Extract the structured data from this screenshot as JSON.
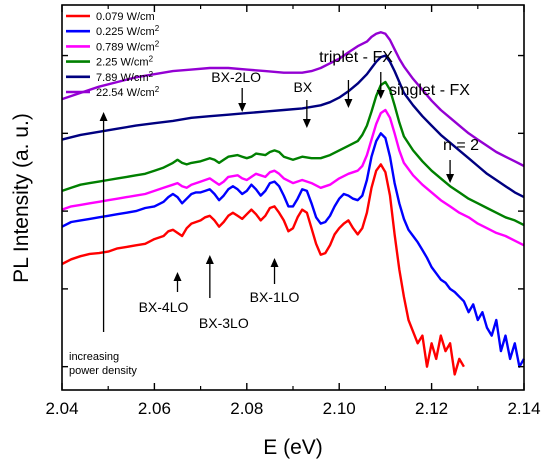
{
  "chart_data": {
    "type": "line",
    "xlabel": "E (eV)",
    "ylabel": "PL Intensity (a. u.)",
    "xlim": [
      2.04,
      2.14
    ],
    "x_ticks": [
      "2.04",
      "2.06",
      "2.08",
      "2.10",
      "2.12",
      "2.14"
    ],
    "y_scale": "log",
    "y_tick_labels_shown": false,
    "grid": false,
    "legend_position": "top-left",
    "series": [
      {
        "name": "0.079 W/cm",
        "name_sup": "",
        "color": "#ff0000",
        "x": [
          2.04,
          2.042,
          2.044,
          2.046,
          2.048,
          2.05,
          2.052,
          2.054,
          2.056,
          2.058,
          2.06,
          2.062,
          2.063,
          2.064,
          2.065,
          2.066,
          2.067,
          2.068,
          2.069,
          2.07,
          2.071,
          2.072,
          2.073,
          2.074,
          2.075,
          2.076,
          2.077,
          2.078,
          2.079,
          2.08,
          2.081,
          2.082,
          2.083,
          2.084,
          2.085,
          2.086,
          2.087,
          2.088,
          2.089,
          2.09,
          2.091,
          2.092,
          2.093,
          2.094,
          2.095,
          2.096,
          2.097,
          2.098,
          2.099,
          2.1,
          2.101,
          2.102,
          2.103,
          2.104,
          2.105,
          2.106,
          2.107,
          2.108,
          2.109,
          2.11,
          2.111,
          2.112,
          2.113,
          2.114,
          2.115,
          2.116,
          2.117,
          2.118,
          2.119,
          2.12,
          2.121,
          2.122,
          2.123,
          2.124,
          2.125,
          2.126,
          2.127
        ],
        "y": [
          -0.68,
          -0.62,
          -0.58,
          -0.55,
          -0.54,
          -0.52,
          -0.48,
          -0.46,
          -0.44,
          -0.42,
          -0.36,
          -0.32,
          -0.26,
          -0.24,
          -0.28,
          -0.32,
          -0.22,
          -0.16,
          -0.14,
          -0.12,
          -0.08,
          -0.06,
          -0.12,
          -0.2,
          -0.14,
          -0.06,
          -0.02,
          -0.06,
          -0.1,
          -0.04,
          0.02,
          -0.04,
          -0.12,
          -0.06,
          0.04,
          0.06,
          -0.02,
          -0.12,
          -0.26,
          -0.22,
          -0.08,
          0.02,
          -0.02,
          -0.22,
          -0.42,
          -0.56,
          -0.54,
          -0.44,
          -0.3,
          -0.22,
          -0.16,
          -0.12,
          -0.22,
          -0.3,
          -0.22,
          -0.02,
          0.3,
          0.52,
          0.6,
          0.5,
          0.2,
          -0.3,
          -0.75,
          -1.1,
          -1.4,
          -1.55,
          -1.7,
          -1.6,
          -2.0,
          -1.7,
          -1.9,
          -1.6,
          -1.8,
          -1.7,
          -2.1,
          -1.9,
          -2.0
        ]
      },
      {
        "name": "0.225 W/cm",
        "name_sup": "2",
        "color": "#0000ff",
        "x": [
          2.04,
          2.042,
          2.044,
          2.046,
          2.048,
          2.05,
          2.052,
          2.054,
          2.056,
          2.058,
          2.06,
          2.062,
          2.063,
          2.064,
          2.065,
          2.066,
          2.067,
          2.068,
          2.069,
          2.07,
          2.071,
          2.072,
          2.073,
          2.074,
          2.075,
          2.076,
          2.077,
          2.078,
          2.079,
          2.08,
          2.081,
          2.082,
          2.083,
          2.084,
          2.085,
          2.086,
          2.087,
          2.088,
          2.089,
          2.09,
          2.091,
          2.092,
          2.093,
          2.094,
          2.095,
          2.096,
          2.097,
          2.098,
          2.099,
          2.1,
          2.101,
          2.102,
          2.103,
          2.104,
          2.105,
          2.106,
          2.107,
          2.108,
          2.109,
          2.11,
          2.111,
          2.112,
          2.113,
          2.114,
          2.115,
          2.116,
          2.117,
          2.118,
          2.119,
          2.12,
          2.121,
          2.122,
          2.123,
          2.124,
          2.125,
          2.126,
          2.127,
          2.128,
          2.129,
          2.13,
          2.131,
          2.132,
          2.133,
          2.134,
          2.135,
          2.136,
          2.137,
          2.138,
          2.139,
          2.14
        ],
        "y": [
          -0.2,
          -0.14,
          -0.12,
          -0.1,
          -0.08,
          -0.06,
          -0.04,
          -0.02,
          0.0,
          0.04,
          0.06,
          0.12,
          0.18,
          0.22,
          0.18,
          0.1,
          0.16,
          0.22,
          0.24,
          0.24,
          0.26,
          0.28,
          0.22,
          0.14,
          0.2,
          0.28,
          0.32,
          0.28,
          0.22,
          0.26,
          0.34,
          0.28,
          0.2,
          0.26,
          0.36,
          0.38,
          0.32,
          0.2,
          0.06,
          0.06,
          0.16,
          0.28,
          0.26,
          0.1,
          -0.08,
          -0.16,
          -0.14,
          -0.06,
          0.06,
          0.16,
          0.22,
          0.2,
          0.16,
          0.14,
          0.2,
          0.4,
          0.7,
          0.9,
          1.0,
          0.94,
          0.7,
          0.36,
          0.1,
          -0.1,
          -0.24,
          -0.32,
          -0.4,
          -0.5,
          -0.6,
          -0.72,
          -0.8,
          -0.88,
          -0.92,
          -1.0,
          -1.04,
          -1.1,
          -1.16,
          -1.3,
          -1.2,
          -1.4,
          -1.3,
          -1.5,
          -1.6,
          -1.4,
          -1.8,
          -1.6,
          -1.9,
          -1.7,
          -2.0,
          -1.9
        ]
      },
      {
        "name": "0.789 W/cm",
        "name_sup": "2",
        "color": "#ff00ff",
        "x": [
          2.04,
          2.042,
          2.044,
          2.046,
          2.048,
          2.05,
          2.052,
          2.054,
          2.056,
          2.058,
          2.06,
          2.062,
          2.064,
          2.065,
          2.066,
          2.067,
          2.068,
          2.07,
          2.072,
          2.073,
          2.074,
          2.075,
          2.076,
          2.078,
          2.079,
          2.08,
          2.081,
          2.082,
          2.084,
          2.085,
          2.086,
          2.087,
          2.088,
          2.09,
          2.092,
          2.094,
          2.096,
          2.098,
          2.1,
          2.102,
          2.104,
          2.105,
          2.106,
          2.107,
          2.108,
          2.109,
          2.11,
          2.111,
          2.112,
          2.113,
          2.114,
          2.116,
          2.118,
          2.12,
          2.122,
          2.124,
          2.126,
          2.128,
          2.13,
          2.132,
          2.134,
          2.136,
          2.138,
          2.14
        ],
        "y": [
          0.02,
          0.06,
          0.08,
          0.1,
          0.12,
          0.14,
          0.16,
          0.18,
          0.2,
          0.22,
          0.26,
          0.3,
          0.34,
          0.36,
          0.32,
          0.3,
          0.34,
          0.38,
          0.42,
          0.38,
          0.34,
          0.38,
          0.44,
          0.46,
          0.42,
          0.4,
          0.44,
          0.48,
          0.44,
          0.5,
          0.52,
          0.48,
          0.42,
          0.36,
          0.4,
          0.36,
          0.3,
          0.34,
          0.42,
          0.48,
          0.52,
          0.58,
          0.72,
          0.92,
          1.12,
          1.26,
          1.3,
          1.2,
          1.0,
          0.78,
          0.62,
          0.46,
          0.34,
          0.24,
          0.14,
          0.06,
          -0.02,
          -0.08,
          -0.16,
          -0.22,
          -0.28,
          -0.32,
          -0.38,
          -0.44
        ]
      },
      {
        "name": "2.25 W/cm",
        "name_sup": "2",
        "color": "#008000",
        "x": [
          2.04,
          2.042,
          2.044,
          2.046,
          2.048,
          2.05,
          2.052,
          2.054,
          2.056,
          2.058,
          2.06,
          2.062,
          2.064,
          2.065,
          2.066,
          2.067,
          2.068,
          2.07,
          2.072,
          2.073,
          2.074,
          2.075,
          2.076,
          2.078,
          2.079,
          2.08,
          2.081,
          2.082,
          2.084,
          2.085,
          2.086,
          2.087,
          2.088,
          2.09,
          2.092,
          2.094,
          2.096,
          2.098,
          2.1,
          2.102,
          2.104,
          2.105,
          2.106,
          2.107,
          2.108,
          2.109,
          2.11,
          2.111,
          2.112,
          2.113,
          2.114,
          2.116,
          2.118,
          2.12,
          2.122,
          2.124,
          2.126,
          2.128,
          2.13,
          2.132,
          2.134,
          2.136,
          2.138,
          2.14
        ],
        "y": [
          0.26,
          0.3,
          0.34,
          0.36,
          0.38,
          0.4,
          0.42,
          0.44,
          0.46,
          0.48,
          0.52,
          0.56,
          0.62,
          0.66,
          0.62,
          0.6,
          0.62,
          0.64,
          0.68,
          0.66,
          0.62,
          0.66,
          0.7,
          0.72,
          0.7,
          0.68,
          0.7,
          0.74,
          0.72,
          0.76,
          0.78,
          0.76,
          0.7,
          0.66,
          0.7,
          0.68,
          0.68,
          0.72,
          0.78,
          0.84,
          0.9,
          0.98,
          1.1,
          1.28,
          1.48,
          1.62,
          1.66,
          1.56,
          1.36,
          1.14,
          0.96,
          0.78,
          0.64,
          0.52,
          0.42,
          0.32,
          0.24,
          0.16,
          0.1,
          0.04,
          -0.02,
          -0.08,
          -0.12,
          -0.18
        ]
      },
      {
        "name": "7.89 W/cm",
        "name_sup": "2",
        "color": "#000080",
        "x": [
          2.04,
          2.044,
          2.048,
          2.052,
          2.056,
          2.06,
          2.064,
          2.068,
          2.072,
          2.076,
          2.08,
          2.084,
          2.088,
          2.092,
          2.096,
          2.098,
          2.1,
          2.102,
          2.104,
          2.106,
          2.107,
          2.108,
          2.109,
          2.11,
          2.111,
          2.112,
          2.113,
          2.114,
          2.116,
          2.118,
          2.12,
          2.122,
          2.124,
          2.126,
          2.128,
          2.13,
          2.132,
          2.134,
          2.136,
          2.138,
          2.14
        ],
        "y": [
          0.92,
          0.98,
          1.02,
          1.06,
          1.1,
          1.13,
          1.16,
          1.2,
          1.22,
          1.24,
          1.26,
          1.28,
          1.3,
          1.32,
          1.36,
          1.4,
          1.46,
          1.54,
          1.64,
          1.76,
          1.84,
          1.92,
          1.98,
          2.0,
          1.92,
          1.8,
          1.66,
          1.52,
          1.36,
          1.22,
          1.1,
          0.98,
          0.88,
          0.78,
          0.68,
          0.58,
          0.48,
          0.4,
          0.32,
          0.24,
          0.18
        ]
      },
      {
        "name": "22.54 W/cm",
        "name_sup": "2",
        "color": "#9400d3",
        "x": [
          2.04,
          2.044,
          2.048,
          2.052,
          2.056,
          2.06,
          2.064,
          2.068,
          2.072,
          2.076,
          2.08,
          2.084,
          2.088,
          2.092,
          2.094,
          2.096,
          2.098,
          2.1,
          2.102,
          2.104,
          2.106,
          2.107,
          2.108,
          2.109,
          2.11,
          2.111,
          2.112,
          2.113,
          2.114,
          2.116,
          2.118,
          2.12,
          2.122,
          2.124,
          2.126,
          2.128,
          2.13,
          2.132,
          2.134,
          2.136,
          2.138,
          2.14
        ],
        "y": [
          1.44,
          1.52,
          1.6,
          1.66,
          1.72,
          1.76,
          1.8,
          1.82,
          1.84,
          1.84,
          1.82,
          1.8,
          1.78,
          1.78,
          1.8,
          1.84,
          1.9,
          1.96,
          2.04,
          2.12,
          2.18,
          2.24,
          2.28,
          2.3,
          2.28,
          2.2,
          2.08,
          1.96,
          1.86,
          1.7,
          1.56,
          1.42,
          1.3,
          1.2,
          1.1,
          1.0,
          0.92,
          0.84,
          0.76,
          0.7,
          0.64,
          0.58
        ]
      }
    ],
    "annotations": [
      {
        "id": "bx2lo",
        "text": "BX-2LO",
        "arrow_x": 2.079
      },
      {
        "id": "bx",
        "text": "BX",
        "arrow_x": 2.093
      },
      {
        "id": "triplet",
        "text": "triplet - FX",
        "arrow_x": 2.102
      },
      {
        "id": "singlet",
        "text": "singlet - FX",
        "arrow_x": 2.109
      },
      {
        "id": "n2",
        "text": "n = 2",
        "arrow_x": 2.124
      },
      {
        "id": "bx4lo",
        "text": "BX-4LO",
        "arrow_x": 2.065
      },
      {
        "id": "bx3lo",
        "text": "BX-3LO",
        "arrow_x": 2.072
      },
      {
        "id": "bx1lo",
        "text": "BX-1LO",
        "arrow_x": 2.086
      },
      {
        "id": "power",
        "text_line1": "increasing",
        "text_line2": "power density",
        "arrow_x": 2.049
      }
    ]
  }
}
